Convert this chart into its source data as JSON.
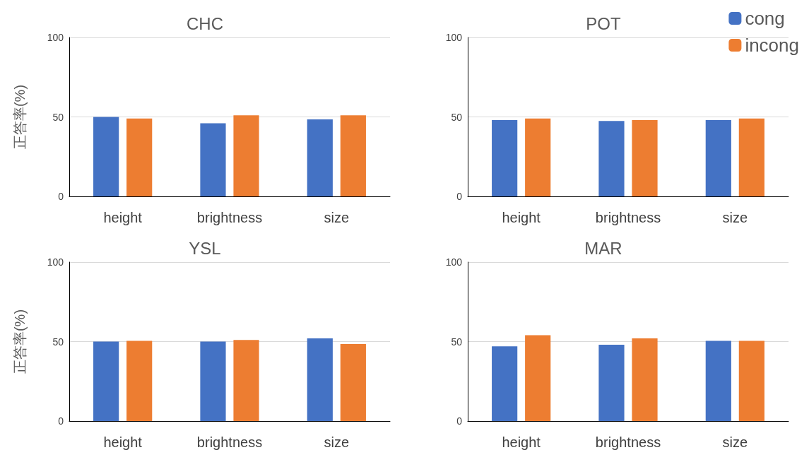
{
  "chart_data": [
    {
      "type": "bar",
      "title": "CHC",
      "ylabel": "正答率(%)",
      "categories": [
        "height",
        "brightness",
        "size"
      ],
      "series": [
        {
          "color": "#4472c4",
          "values": [
            50,
            46,
            48.5
          ]
        },
        {
          "color": "#ed7d31",
          "values": [
            49,
            51,
            51
          ]
        }
      ],
      "ylim": [
        0,
        100
      ],
      "yticks": [
        0,
        50,
        100
      ],
      "grid": "y",
      "legend": false
    },
    {
      "type": "bar",
      "title": "POT",
      "categories": [
        "height",
        "brightness",
        "size"
      ],
      "series": [
        {
          "name": "cong",
          "color": "#4472c4",
          "values": [
            48,
            47.5,
            48
          ]
        },
        {
          "name": "incong",
          "color": "#ed7d31",
          "values": [
            49,
            48,
            49
          ]
        }
      ],
      "ylim": [
        0,
        100
      ],
      "yticks": [
        0,
        50,
        100
      ],
      "grid": "y",
      "legend": "top right"
    },
    {
      "type": "bar",
      "title": "YSL",
      "ylabel": "正答率(%)",
      "categories": [
        "height",
        "brightness",
        "size"
      ],
      "series": [
        {
          "color": "#4472c4",
          "values": [
            50,
            50,
            52
          ]
        },
        {
          "color": "#ed7d31",
          "values": [
            50.5,
            51,
            48.5
          ]
        }
      ],
      "ylim": [
        0,
        100
      ],
      "yticks": [
        0,
        50,
        100
      ],
      "grid": "y",
      "legend": false
    },
    {
      "type": "bar",
      "title": "MAR",
      "categories": [
        "height",
        "brightness",
        "size"
      ],
      "series": [
        {
          "color": "#4472c4",
          "values": [
            47,
            48,
            50.5
          ]
        },
        {
          "color": "#ed7d31",
          "values": [
            54,
            52,
            50.5
          ]
        }
      ],
      "ylim": [
        0,
        100
      ],
      "yticks": [
        0,
        50,
        100
      ],
      "grid": "y",
      "legend": false
    }
  ]
}
